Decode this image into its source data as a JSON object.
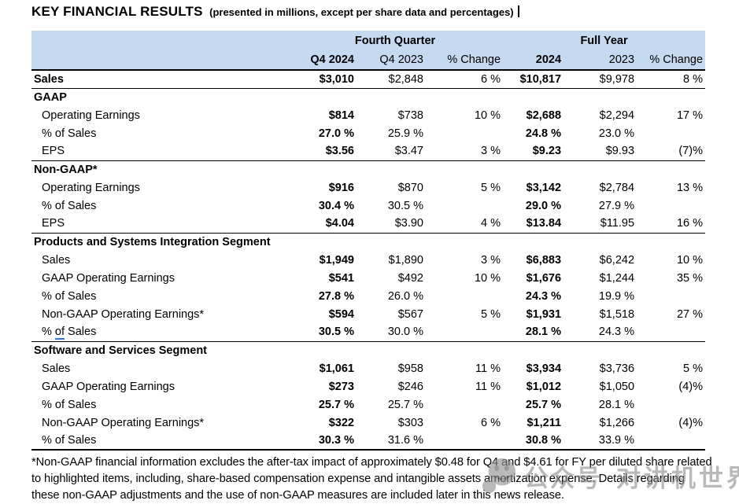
{
  "title": {
    "main": "KEY FINANCIAL RESULTS",
    "sub": "(presented in millions, except per share data and percentages)"
  },
  "table": {
    "group_headers": [
      "Fourth Quarter",
      "Full Year"
    ],
    "columns": [
      "Q4 2024",
      "Q4 2023",
      "% Change",
      "2024",
      "2023",
      "% Change"
    ],
    "rows": [
      {
        "label": "Sales",
        "bold_label": true,
        "rule": "thin",
        "cells": [
          "$3,010",
          "$2,848",
          "6 %",
          "$10,817",
          "$9,978",
          "8 %"
        ]
      },
      {
        "label": "GAAP",
        "section": true
      },
      {
        "label": "Operating Earnings",
        "indent": true,
        "cells": [
          "$814",
          "$738",
          "10 %",
          "$2,688",
          "$2,294",
          "17 %"
        ]
      },
      {
        "label": "% of Sales",
        "indent": true,
        "cells": [
          "27.0 %",
          "25.9 %",
          "",
          "24.8 %",
          "23.0 %",
          ""
        ]
      },
      {
        "label": "EPS",
        "indent": true,
        "rule": "thin",
        "cells": [
          "$3.56",
          "$3.47",
          "3 %",
          "$9.23",
          "$9.93",
          "(7)%"
        ]
      },
      {
        "label": "Non-GAAP*",
        "section": true
      },
      {
        "label": "Operating Earnings",
        "indent": true,
        "cells": [
          "$916",
          "$870",
          "5 %",
          "$3,142",
          "$2,784",
          "13 %"
        ]
      },
      {
        "label": "% of Sales",
        "indent": true,
        "cells": [
          "30.4 %",
          "30.5 %",
          "",
          "29.0 %",
          "27.9 %",
          ""
        ]
      },
      {
        "label": "EPS",
        "indent": true,
        "rule": "thin",
        "cells": [
          "$4.04",
          "$3.90",
          "4 %",
          "$13.84",
          "$11.95",
          "16 %"
        ]
      },
      {
        "label": "Products and Systems Integration Segment",
        "section": true
      },
      {
        "label": "Sales",
        "indent": true,
        "cells": [
          "$1,949",
          "$1,890",
          "3 %",
          "$6,883",
          "$6,242",
          "10 %"
        ]
      },
      {
        "label": "GAAP Operating Earnings",
        "indent": true,
        "cells": [
          "$541",
          "$492",
          "10 %",
          "$1,676",
          "$1,244",
          "35 %"
        ]
      },
      {
        "label": "% of Sales",
        "indent": true,
        "cells": [
          "27.8 %",
          "26.0 %",
          "",
          "24.3 %",
          "19.9 %",
          ""
        ]
      },
      {
        "label": "Non-GAAP Operating Earnings*",
        "indent": true,
        "cells": [
          "$594",
          "$567",
          "5 %",
          "$1,931",
          "$1,518",
          "27 %"
        ]
      },
      {
        "label": "% of Sales",
        "indent": true,
        "rule": "thin",
        "grammar_underline": true,
        "label_parts": [
          "% ",
          "of",
          " Sales"
        ],
        "cells": [
          "30.5 %",
          "30.0 %",
          "",
          "28.1 %",
          "24.3 %",
          ""
        ]
      },
      {
        "label": "Software and Services Segment",
        "section": true
      },
      {
        "label": "Sales",
        "indent": true,
        "cells": [
          "$1,061",
          "$958",
          "11 %",
          "$3,934",
          "$3,736",
          "5 %"
        ]
      },
      {
        "label": "GAAP Operating Earnings",
        "indent": true,
        "cells": [
          "$273",
          "$246",
          "11 %",
          "$1,012",
          "$1,050",
          "(4)%"
        ]
      },
      {
        "label": "% of Sales",
        "indent": true,
        "cells": [
          "25.7 %",
          "25.7 %",
          "",
          "25.7 %",
          "28.1 %",
          ""
        ]
      },
      {
        "label": "Non-GAAP Operating Earnings*",
        "indent": true,
        "cells": [
          "$322",
          "$303",
          "6 %",
          "$1,211",
          "$1,266",
          "(4)%"
        ]
      },
      {
        "label": "% of Sales",
        "indent": true,
        "rule": "thick",
        "cells": [
          "30.3 %",
          "31.6 %",
          "",
          "30.8 %",
          "33.9 %",
          ""
        ]
      }
    ]
  },
  "footnote": "*Non-GAAP financial information excludes the after-tax impact of approximately $0.48 for Q4 and $4.61 for FY per diluted share related to highlighted items, including, share-based compensation expense and intangible assets amortization expense. Details regarding these non-GAAP adjustments and the use of non-GAAP measures are included later in this news release.",
  "watermark": {
    "icon": "wechat-bubbles-face-icon",
    "text_1": "公众号",
    "text_2": "对讲机世界"
  },
  "colors": {
    "header_bg": "#c5d9f0",
    "border": "#000000",
    "grammar_underline": "#3a6fd8",
    "watermark_gray": "#8f8f8f"
  }
}
